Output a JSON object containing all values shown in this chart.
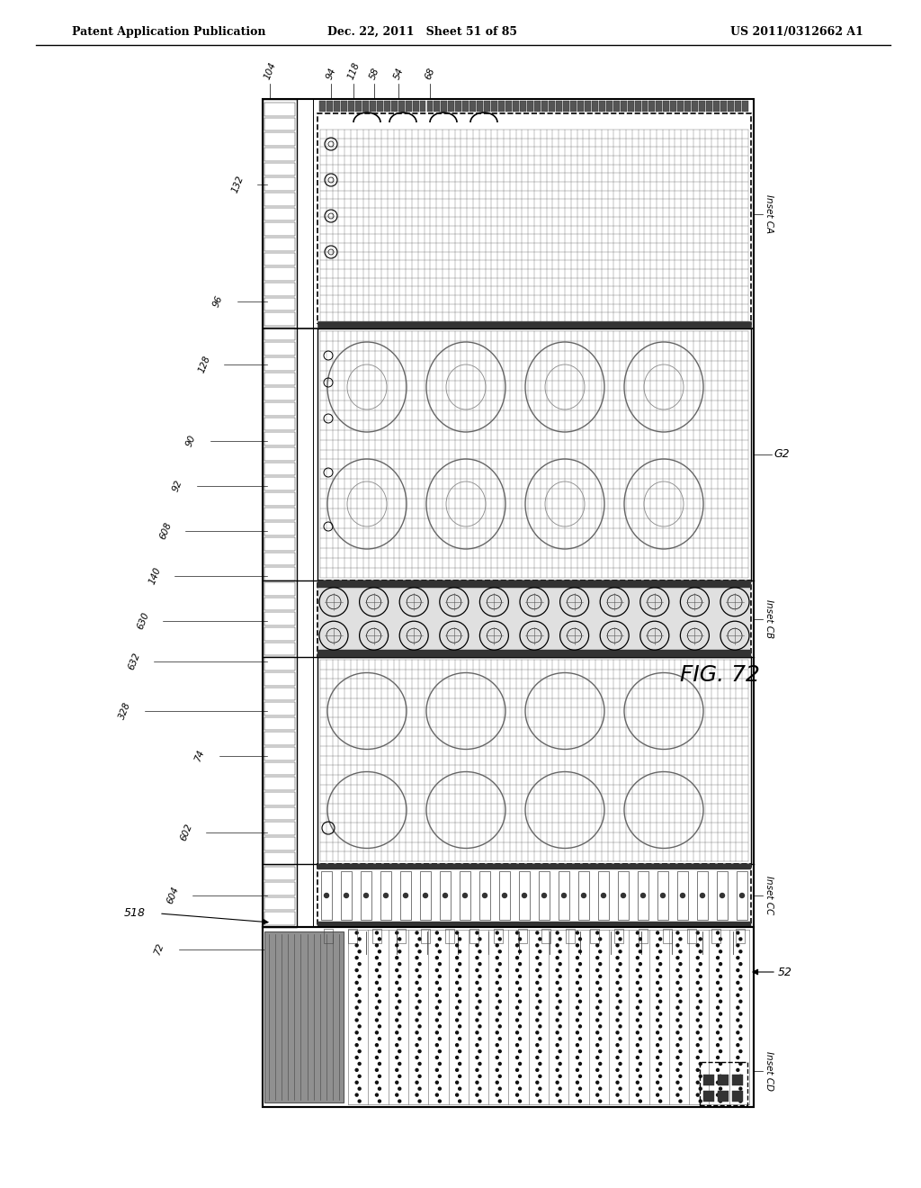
{
  "header_left": "Patent Application Publication",
  "header_mid": "Dec. 22, 2011   Sheet 51 of 85",
  "header_right": "US 2011/0312662 A1",
  "fig_label": "FIG. 72",
  "bg_color": "#ffffff"
}
